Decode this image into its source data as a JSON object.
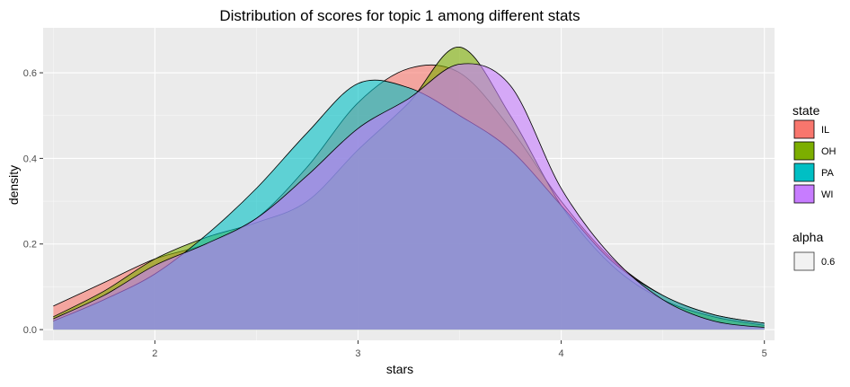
{
  "chart_data": {
    "type": "area",
    "title": "Distribution of scores for topic 1 among different stats",
    "xlabel": "stars",
    "ylabel": "density",
    "xlim": [
      1.45,
      5.05
    ],
    "ylim": [
      -0.025,
      0.705
    ],
    "x_ticks": [
      2,
      3,
      4,
      5
    ],
    "x_tick_labels": [
      "2",
      "3",
      "4",
      "5"
    ],
    "y_ticks": [
      0.0,
      0.2,
      0.4,
      0.6
    ],
    "y_tick_labels": [
      "0.0",
      "0.2",
      "0.4",
      "0.6"
    ],
    "grid": true,
    "legend": {
      "title": "state",
      "position": "right",
      "alpha_title": "alpha",
      "alpha_label": "0.6"
    },
    "x": [
      1.5,
      1.75,
      2.0,
      2.25,
      2.5,
      2.75,
      3.0,
      3.25,
      3.5,
      3.75,
      4.0,
      4.25,
      4.5,
      4.75,
      5.0
    ],
    "series": [
      {
        "name": "IL",
        "color": "#F8766D",
        "values": [
          0.055,
          0.11,
          0.165,
          0.2,
          0.26,
          0.38,
          0.53,
          0.61,
          0.6,
          0.47,
          0.3,
          0.165,
          0.08,
          0.035,
          0.015
        ]
      },
      {
        "name": "OH",
        "color": "#7CAE00",
        "values": [
          0.03,
          0.09,
          0.165,
          0.215,
          0.25,
          0.3,
          0.42,
          0.53,
          0.66,
          0.5,
          0.29,
          0.15,
          0.07,
          0.03,
          0.01
        ]
      },
      {
        "name": "PA",
        "color": "#00BFC4",
        "values": [
          0.02,
          0.07,
          0.13,
          0.22,
          0.33,
          0.46,
          0.575,
          0.565,
          0.5,
          0.42,
          0.29,
          0.16,
          0.08,
          0.035,
          0.015
        ]
      },
      {
        "name": "WI",
        "color": "#C77CFF",
        "values": [
          0.025,
          0.08,
          0.15,
          0.2,
          0.26,
          0.36,
          0.47,
          0.54,
          0.62,
          0.57,
          0.33,
          0.17,
          0.07,
          0.02,
          0.005
        ]
      }
    ]
  }
}
